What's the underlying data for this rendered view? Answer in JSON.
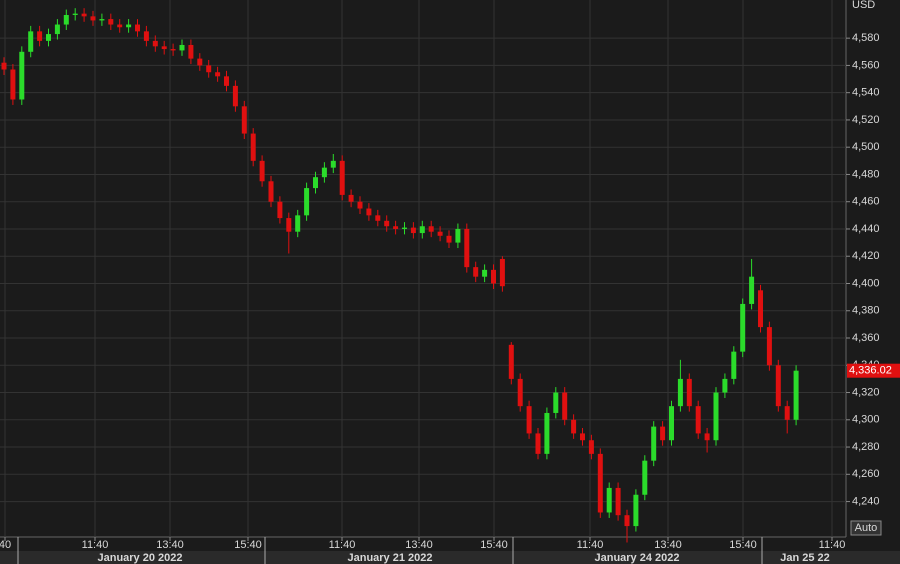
{
  "chart_data": {
    "type": "candlestick",
    "y_label": "USD",
    "auto_button": "Auto",
    "last_price_label": "4,336.02",
    "ylim": [
      4214,
      4608
    ],
    "yticks": [
      {
        "value": 4240,
        "label": "4,240"
      },
      {
        "value": 4260,
        "label": "4,260"
      },
      {
        "value": 4280,
        "label": "4,280"
      },
      {
        "value": 4300,
        "label": "4,300"
      },
      {
        "value": 4320,
        "label": "4,320"
      },
      {
        "value": 4340,
        "label": "4,340"
      },
      {
        "value": 4360,
        "label": "4,360"
      },
      {
        "value": 4380,
        "label": "4,380"
      },
      {
        "value": 4400,
        "label": "4,400"
      },
      {
        "value": 4420,
        "label": "4,420"
      },
      {
        "value": 4440,
        "label": "4,440"
      },
      {
        "value": 4460,
        "label": "4,460"
      },
      {
        "value": 4480,
        "label": "4,480"
      },
      {
        "value": 4500,
        "label": "4,500"
      },
      {
        "value": 4520,
        "label": "4,520"
      },
      {
        "value": 4540,
        "label": "4,540"
      },
      {
        "value": 4560,
        "label": "4,560"
      },
      {
        "value": 4580,
        "label": "4,580"
      }
    ],
    "time_labels": [
      "40",
      "11:40",
      "13:40",
      "15:40",
      "11:40",
      "13:40",
      "15:40",
      "11:40",
      "13:40",
      "15:40",
      "11:40"
    ],
    "date_labels": [
      "January 20 2022",
      "January 21 2022",
      "January 24 2022",
      "Jan 25 22"
    ],
    "up_color": "#2bdc2b",
    "down_color": "#e01010",
    "grid": true,
    "open": [
      4562,
      4557,
      4535,
      4570,
      4585,
      4578,
      4583,
      4590,
      4597,
      4598,
      4596,
      4593,
      4594,
      4590,
      4588,
      4590,
      4585,
      4578,
      4574,
      4572,
      4571,
      4575,
      4565,
      4560,
      4555,
      4552,
      4545,
      4530,
      4510,
      4490,
      4475,
      4460,
      4448,
      4438,
      4450,
      4470,
      4478,
      4485,
      4490,
      4465,
      4460,
      4455,
      4450,
      4446,
      4442,
      4440,
      4441,
      4437,
      4442,
      4438,
      4435,
      4430,
      4440,
      4412,
      4405,
      4410,
      4418,
      4355,
      4330,
      4310,
      4290,
      4275,
      4305,
      4320,
      4300,
      4290,
      4285,
      4275,
      4232,
      4250,
      4230,
      4222,
      4245,
      4270,
      4295,
      4285,
      4310,
      4330,
      4310,
      4290,
      4285,
      4320,
      4330,
      4350,
      4385,
      4395,
      4368,
      4340,
      4310,
      4300
    ],
    "high": [
      4566,
      4561,
      4574,
      4589,
      4589,
      4587,
      4594,
      4601,
      4602,
      4602,
      4600,
      4598,
      4598,
      4594,
      4594,
      4594,
      4589,
      4582,
      4578,
      4576,
      4579,
      4579,
      4569,
      4564,
      4559,
      4556,
      4549,
      4534,
      4514,
      4494,
      4479,
      4464,
      4452,
      4454,
      4474,
      4482,
      4489,
      4495,
      4494,
      4469,
      4464,
      4459,
      4454,
      4450,
      4446,
      4445,
      4445,
      4446,
      4446,
      4442,
      4439,
      4444,
      4444,
      4416,
      4414,
      4414,
      4420,
      4357,
      4334,
      4314,
      4294,
      4309,
      4324,
      4324,
      4304,
      4294,
      4289,
      4279,
      4254,
      4254,
      4234,
      4249,
      4274,
      4299,
      4299,
      4314,
      4344,
      4334,
      4314,
      4294,
      4324,
      4334,
      4354,
      4389,
      4418,
      4399,
      4372,
      4344,
      4314,
      4340
    ],
    "low": [
      4553,
      4531,
      4531,
      4566,
      4574,
      4574,
      4579,
      4586,
      4593,
      4592,
      4589,
      4589,
      4586,
      4584,
      4584,
      4581,
      4574,
      4570,
      4568,
      4567,
      4567,
      4561,
      4556,
      4551,
      4548,
      4541,
      4526,
      4506,
      4486,
      4471,
      4456,
      4444,
      4422,
      4434,
      4446,
      4466,
      4474,
      4481,
      4461,
      4456,
      4451,
      4446,
      4442,
      4438,
      4436,
      4436,
      4433,
      4433,
      4434,
      4431,
      4426,
      4426,
      4408,
      4401,
      4401,
      4396,
      4394,
      4326,
      4306,
      4286,
      4271,
      4271,
      4301,
      4296,
      4286,
      4281,
      4271,
      4228,
      4228,
      4226,
      4210,
      4218,
      4241,
      4266,
      4281,
      4281,
      4306,
      4306,
      4286,
      4276,
      4281,
      4316,
      4326,
      4346,
      4381,
      4364,
      4336,
      4306,
      4290,
      4296
    ],
    "close": [
      4557,
      4535,
      4570,
      4585,
      4578,
      4583,
      4590,
      4597,
      4598,
      4596,
      4593,
      4594,
      4590,
      4588,
      4590,
      4585,
      4578,
      4574,
      4572,
      4571,
      4575,
      4565,
      4560,
      4555,
      4552,
      4545,
      4530,
      4510,
      4490,
      4475,
      4460,
      4448,
      4438,
      4450,
      4470,
      4478,
      4485,
      4490,
      4465,
      4460,
      4455,
      4450,
      4446,
      4442,
      4440,
      4441,
      4437,
      4442,
      4438,
      4435,
      4430,
      4440,
      4412,
      4405,
      4410,
      4400,
      4398,
      4330,
      4310,
      4290,
      4275,
      4305,
      4320,
      4300,
      4290,
      4285,
      4275,
      4232,
      4250,
      4230,
      4222,
      4245,
      4270,
      4295,
      4285,
      4310,
      4330,
      4310,
      4290,
      4285,
      4320,
      4330,
      4350,
      4385,
      4405,
      4368,
      4340,
      4310,
      4300,
      4336.02
    ]
  }
}
